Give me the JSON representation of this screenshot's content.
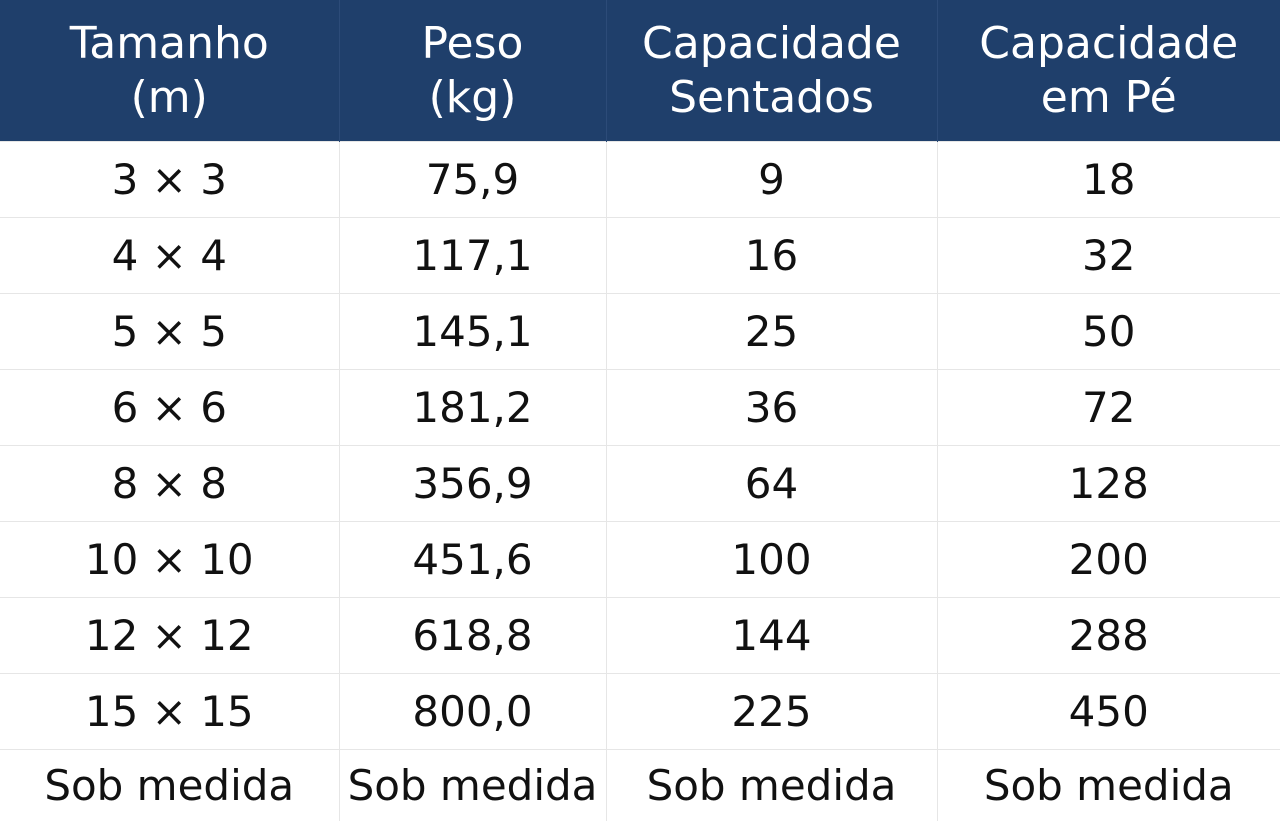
{
  "headers": [
    {
      "line1": "Tamanho",
      "line2": "(m)"
    },
    {
      "line1": "Peso",
      "line2": "(kg)"
    },
    {
      "line1": "Capacidade",
      "line2": "Sentados"
    },
    {
      "line1": "Capacidade",
      "line2": "em Pé"
    }
  ],
  "rows": [
    [
      "3 × 3",
      "75,9",
      "9",
      "18"
    ],
    [
      "4 × 4",
      "117,1",
      "16",
      "32"
    ],
    [
      "5 × 5",
      "145,1",
      "25",
      "50"
    ],
    [
      "6 × 6",
      "181,2",
      "36",
      "72"
    ],
    [
      "8 × 8",
      "356,9",
      "64",
      "128"
    ],
    [
      "10 × 10",
      "451,6",
      "100",
      "200"
    ],
    [
      "12 × 12",
      "618,8",
      "144",
      "288"
    ],
    [
      "15 × 15",
      "800,0",
      "225",
      "450"
    ],
    [
      "Sob medida",
      "Sob medida",
      "Sob medida",
      "Sob medida"
    ]
  ],
  "colors": {
    "header_background": "#1f3f6b",
    "header_text": "#ffffff",
    "body_text": "#111111",
    "grid_lines": "#e6e6e6"
  }
}
